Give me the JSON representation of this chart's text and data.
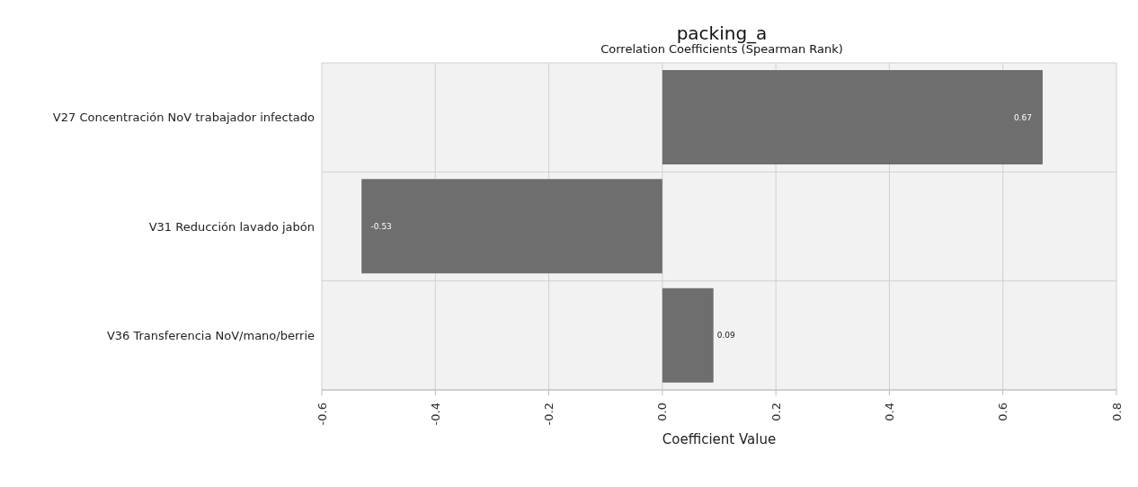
{
  "chart_data": {
    "type": "bar",
    "orientation": "horizontal",
    "title": "packing_a",
    "subtitle": "Correlation Coefficients (Spearman Rank)",
    "xlabel": "Coefficient Value",
    "categories": [
      "V27 Concentración NoV trabajador infectado",
      "V31 Reducción lavado jabón",
      "V36 Transferencia NoV/mano/berrie"
    ],
    "values": [
      0.67,
      -0.53,
      0.09
    ],
    "color": "#6e6e6e",
    "data_labels": true,
    "xlim": [
      -0.6,
      0.8
    ],
    "xticks": [
      {
        "value": -0.6,
        "label": "-0.6"
      },
      {
        "value": -0.4,
        "label": "-0.4"
      },
      {
        "value": -0.2,
        "label": "-0.2"
      },
      {
        "value": 0,
        "label": "0.0"
      },
      {
        "value": 0.2,
        "label": "0.2"
      },
      {
        "value": 0.4,
        "label": "0.4"
      },
      {
        "value": 0.6,
        "label": "0.6"
      },
      {
        "value": 0.8,
        "label": "0.8"
      }
    ],
    "grid": true
  }
}
